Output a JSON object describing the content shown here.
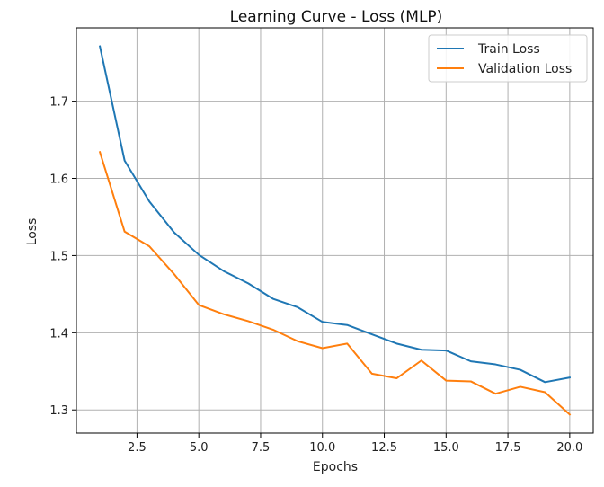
{
  "chart_data": {
    "type": "line",
    "title": "Learning Curve - Loss (MLP)",
    "xlabel": "Epochs",
    "ylabel": "Loss",
    "xlim": [
      0.05,
      20.95
    ],
    "ylim": [
      1.27,
      1.795
    ],
    "xticks": [
      2.5,
      5.0,
      7.5,
      10.0,
      12.5,
      15.0,
      17.5,
      20.0
    ],
    "xtick_labels": [
      "2.5",
      "5.0",
      "7.5",
      "10.0",
      "12.5",
      "15.0",
      "17.5",
      "20.0"
    ],
    "yticks": [
      1.3,
      1.4,
      1.5,
      1.6,
      1.7
    ],
    "ytick_labels": [
      "1.3",
      "1.4",
      "1.5",
      "1.6",
      "1.7"
    ],
    "grid": true,
    "legend_position": "top-right",
    "x": [
      1,
      2,
      3,
      4,
      5,
      6,
      7,
      8,
      9,
      10,
      11,
      12,
      13,
      14,
      15,
      16,
      17,
      18,
      19,
      20
    ],
    "series": [
      {
        "name": "Train Loss",
        "color": "#1f77b4",
        "values": [
          1.771,
          1.623,
          1.57,
          1.53,
          1.501,
          1.48,
          1.464,
          1.444,
          1.433,
          1.414,
          1.41,
          1.398,
          1.386,
          1.378,
          1.377,
          1.363,
          1.359,
          1.352,
          1.336,
          1.342
        ]
      },
      {
        "name": "Validation Loss",
        "color": "#ff7f0e",
        "values": [
          1.634,
          1.531,
          1.512,
          1.476,
          1.436,
          1.424,
          1.415,
          1.404,
          1.389,
          1.38,
          1.386,
          1.347,
          1.341,
          1.364,
          1.338,
          1.337,
          1.321,
          1.33,
          1.323,
          1.294
        ]
      }
    ]
  }
}
